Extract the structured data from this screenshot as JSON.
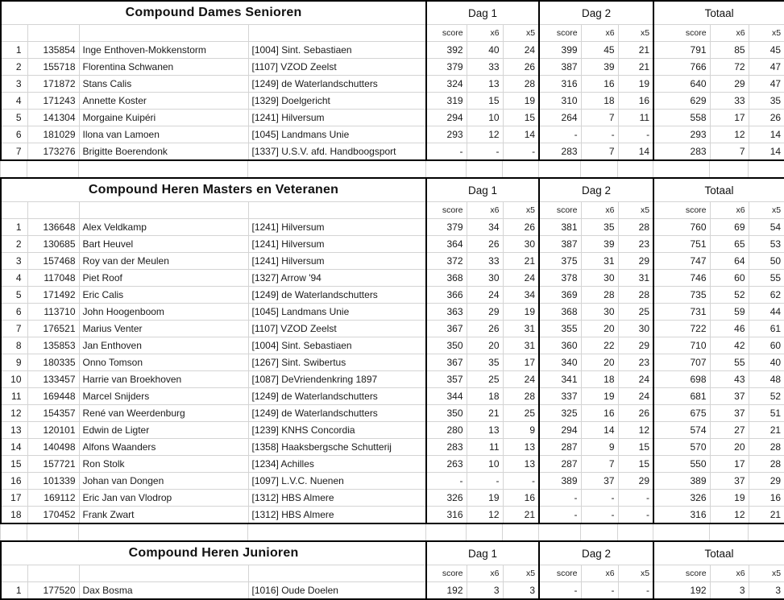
{
  "col_headers": [
    "score",
    "x6",
    "x5"
  ],
  "day_headers": [
    "Dag 1",
    "Dag 2",
    "Totaal"
  ],
  "colors": {
    "grid_line": "#d4d4d4",
    "block_border": "#000000",
    "text": "#1a1a1a",
    "background": "#ffffff"
  },
  "sections": [
    {
      "title": "Compound Dames Senioren",
      "rows": [
        {
          "rank": "1",
          "member": "135854",
          "name": "Inge Enthoven-Mokkenstorm",
          "club": "[1004] Sint. Sebastiaen",
          "d1": [
            "392",
            "40",
            "24"
          ],
          "d2": [
            "399",
            "45",
            "21"
          ],
          "tot": [
            "791",
            "85",
            "45"
          ]
        },
        {
          "rank": "2",
          "member": "155718",
          "name": "Florentina Schwanen",
          "club": "[1107] VZOD Zeelst",
          "d1": [
            "379",
            "33",
            "26"
          ],
          "d2": [
            "387",
            "39",
            "21"
          ],
          "tot": [
            "766",
            "72",
            "47"
          ]
        },
        {
          "rank": "3",
          "member": "171872",
          "name": "Stans Calis",
          "club": "[1249] de Waterlandschutters",
          "d1": [
            "324",
            "13",
            "28"
          ],
          "d2": [
            "316",
            "16",
            "19"
          ],
          "tot": [
            "640",
            "29",
            "47"
          ]
        },
        {
          "rank": "4",
          "member": "171243",
          "name": "Annette Koster",
          "club": "[1329] Doelgericht",
          "d1": [
            "319",
            "15",
            "19"
          ],
          "d2": [
            "310",
            "18",
            "16"
          ],
          "tot": [
            "629",
            "33",
            "35"
          ]
        },
        {
          "rank": "5",
          "member": "141304",
          "name": "Morgaine Kuipéri",
          "club": "[1241] Hilversum",
          "d1": [
            "294",
            "10",
            "15"
          ],
          "d2": [
            "264",
            "7",
            "11"
          ],
          "tot": [
            "558",
            "17",
            "26"
          ]
        },
        {
          "rank": "6",
          "member": "181029",
          "name": "Ilona van Lamoen",
          "club": "[1045] Landmans Unie",
          "d1": [
            "293",
            "12",
            "14"
          ],
          "d2": [
            "-",
            "-",
            "-"
          ],
          "tot": [
            "293",
            "12",
            "14"
          ]
        },
        {
          "rank": "7",
          "member": "173276",
          "name": "Brigitte Boerendonk",
          "club": "[1337] U.S.V. afd. Handboogsport",
          "d1": [
            "-",
            "-",
            "-"
          ],
          "d2": [
            "283",
            "7",
            "14"
          ],
          "tot": [
            "283",
            "7",
            "14"
          ]
        }
      ]
    },
    {
      "title": "Compound Heren Masters en Veteranen",
      "rows": [
        {
          "rank": "1",
          "member": "136648",
          "name": "Alex Veldkamp",
          "club": "[1241] Hilversum",
          "d1": [
            "379",
            "34",
            "26"
          ],
          "d2": [
            "381",
            "35",
            "28"
          ],
          "tot": [
            "760",
            "69",
            "54"
          ]
        },
        {
          "rank": "2",
          "member": "130685",
          "name": "Bart Heuvel",
          "club": "[1241] Hilversum",
          "d1": [
            "364",
            "26",
            "30"
          ],
          "d2": [
            "387",
            "39",
            "23"
          ],
          "tot": [
            "751",
            "65",
            "53"
          ]
        },
        {
          "rank": "3",
          "member": "157468",
          "name": "Roy van der Meulen",
          "club": "[1241] Hilversum",
          "d1": [
            "372",
            "33",
            "21"
          ],
          "d2": [
            "375",
            "31",
            "29"
          ],
          "tot": [
            "747",
            "64",
            "50"
          ]
        },
        {
          "rank": "4",
          "member": "117048",
          "name": "Piet Roof",
          "club": "[1327] Arrow '94",
          "d1": [
            "368",
            "30",
            "24"
          ],
          "d2": [
            "378",
            "30",
            "31"
          ],
          "tot": [
            "746",
            "60",
            "55"
          ]
        },
        {
          "rank": "5",
          "member": "171492",
          "name": "Eric Calis",
          "club": "[1249] de Waterlandschutters",
          "d1": [
            "366",
            "24",
            "34"
          ],
          "d2": [
            "369",
            "28",
            "28"
          ],
          "tot": [
            "735",
            "52",
            "62"
          ]
        },
        {
          "rank": "6",
          "member": "113710",
          "name": "John Hoogenboom",
          "club": "[1045] Landmans Unie",
          "d1": [
            "363",
            "29",
            "19"
          ],
          "d2": [
            "368",
            "30",
            "25"
          ],
          "tot": [
            "731",
            "59",
            "44"
          ]
        },
        {
          "rank": "7",
          "member": "176521",
          "name": "Marius Venter",
          "club": "[1107] VZOD Zeelst",
          "d1": [
            "367",
            "26",
            "31"
          ],
          "d2": [
            "355",
            "20",
            "30"
          ],
          "tot": [
            "722",
            "46",
            "61"
          ]
        },
        {
          "rank": "8",
          "member": "135853",
          "name": "Jan Enthoven",
          "club": "[1004] Sint. Sebastiaen",
          "d1": [
            "350",
            "20",
            "31"
          ],
          "d2": [
            "360",
            "22",
            "29"
          ],
          "tot": [
            "710",
            "42",
            "60"
          ]
        },
        {
          "rank": "9",
          "member": "180335",
          "name": "Onno Tomson",
          "club": "[1267] Sint. Swibertus",
          "d1": [
            "367",
            "35",
            "17"
          ],
          "d2": [
            "340",
            "20",
            "23"
          ],
          "tot": [
            "707",
            "55",
            "40"
          ]
        },
        {
          "rank": "10",
          "member": "133457",
          "name": "Harrie van Broekhoven",
          "club": "[1087] DeVriendenkring 1897",
          "d1": [
            "357",
            "25",
            "24"
          ],
          "d2": [
            "341",
            "18",
            "24"
          ],
          "tot": [
            "698",
            "43",
            "48"
          ]
        },
        {
          "rank": "11",
          "member": "169448",
          "name": "Marcel Snijders",
          "club": "[1249] de Waterlandschutters",
          "d1": [
            "344",
            "18",
            "28"
          ],
          "d2": [
            "337",
            "19",
            "24"
          ],
          "tot": [
            "681",
            "37",
            "52"
          ]
        },
        {
          "rank": "12",
          "member": "154357",
          "name": "René van Weerdenburg",
          "club": "[1249] de Waterlandschutters",
          "d1": [
            "350",
            "21",
            "25"
          ],
          "d2": [
            "325",
            "16",
            "26"
          ],
          "tot": [
            "675",
            "37",
            "51"
          ]
        },
        {
          "rank": "13",
          "member": "120101",
          "name": "Edwin de Ligter",
          "club": "[1239] KNHS Concordia",
          "d1": [
            "280",
            "13",
            "9"
          ],
          "d2": [
            "294",
            "14",
            "12"
          ],
          "tot": [
            "574",
            "27",
            "21"
          ]
        },
        {
          "rank": "14",
          "member": "140498",
          "name": "Alfons Waanders",
          "club": "[1358] Haaksbergsche Schutterij",
          "d1": [
            "283",
            "11",
            "13"
          ],
          "d2": [
            "287",
            "9",
            "15"
          ],
          "tot": [
            "570",
            "20",
            "28"
          ]
        },
        {
          "rank": "15",
          "member": "157721",
          "name": "Ron Stolk",
          "club": "[1234] Achilles",
          "d1": [
            "263",
            "10",
            "13"
          ],
          "d2": [
            "287",
            "7",
            "15"
          ],
          "tot": [
            "550",
            "17",
            "28"
          ]
        },
        {
          "rank": "16",
          "member": "101339",
          "name": "Johan van Dongen",
          "club": "[1097] L.V.C. Nuenen",
          "d1": [
            "-",
            "-",
            "-"
          ],
          "d2": [
            "389",
            "37",
            "29"
          ],
          "tot": [
            "389",
            "37",
            "29"
          ]
        },
        {
          "rank": "17",
          "member": "169112",
          "name": "Eric Jan van Vlodrop",
          "club": "[1312] HBS Almere",
          "d1": [
            "326",
            "19",
            "16"
          ],
          "d2": [
            "-",
            "-",
            "-"
          ],
          "tot": [
            "326",
            "19",
            "16"
          ]
        },
        {
          "rank": "18",
          "member": "170452",
          "name": "Frank Zwart",
          "club": "[1312] HBS Almere",
          "d1": [
            "316",
            "12",
            "21"
          ],
          "d2": [
            "-",
            "-",
            "-"
          ],
          "tot": [
            "316",
            "12",
            "21"
          ]
        }
      ]
    },
    {
      "title": "Compound Heren Junioren",
      "rows": [
        {
          "rank": "1",
          "member": "177520",
          "name": "Dax Bosma",
          "club": "[1016] Oude Doelen",
          "d1": [
            "192",
            "3",
            "3"
          ],
          "d2": [
            "-",
            "-",
            "-"
          ],
          "tot": [
            "192",
            "3",
            "3"
          ]
        }
      ]
    }
  ]
}
